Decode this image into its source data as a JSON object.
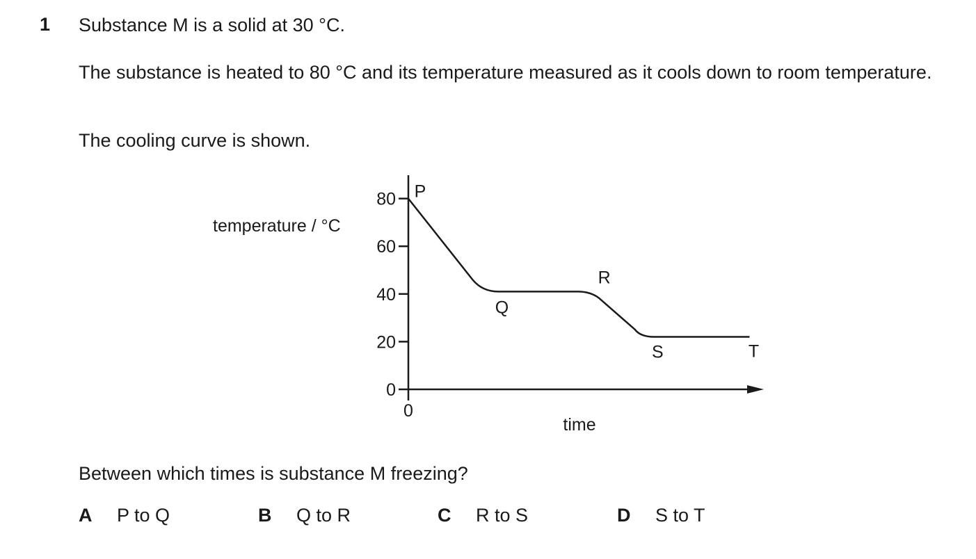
{
  "question": {
    "number": "1",
    "stem_line1": "Substance M is a solid at 30 °C.",
    "stem_line2": "The substance is heated to 80 °C and its temperature measured as it cools down to room temperature.",
    "stem_line3": "The cooling curve is shown.",
    "prompt": "Between which times is substance M freezing?"
  },
  "options": [
    {
      "letter": "A",
      "text": "P to Q"
    },
    {
      "letter": "B",
      "text": "Q to R"
    },
    {
      "letter": "C",
      "text": "R to S"
    },
    {
      "letter": "D",
      "text": "S to T"
    }
  ],
  "chart_data": {
    "type": "line",
    "ylabel": "temperature / °C",
    "xlabel": "time",
    "y_ticks": [
      "0",
      "20",
      "40",
      "60",
      "80"
    ],
    "x_ticks": [
      "0"
    ],
    "ylim": [
      0,
      80
    ],
    "x_ticks_shown_only_origin": true,
    "axis_arrow": "x-axis",
    "grid": false,
    "points": [
      {
        "label": "P",
        "x": 0,
        "y": 80
      },
      {
        "label": "Q",
        "x": 0.35,
        "y": 41
      },
      {
        "label": "R",
        "x": 0.8,
        "y": 41
      },
      {
        "label": "S",
        "x": 1.05,
        "y": 22
      },
      {
        "label": "T",
        "x": 1.5,
        "y": 22
      }
    ]
  }
}
